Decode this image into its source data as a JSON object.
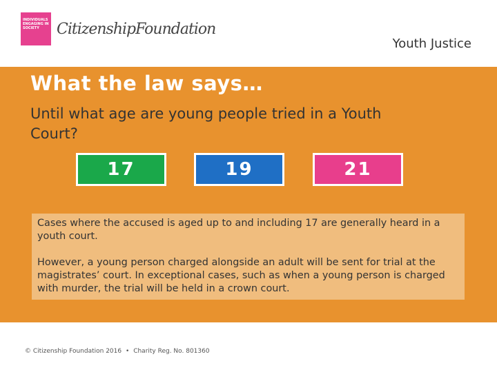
{
  "header": {
    "logo_badge": "INDIVIDUALS ENGAGING IN SOCIETY",
    "logo_name": "CitizenshipFoundation",
    "topic": "Youth Justice"
  },
  "slide": {
    "title": "What the law says…",
    "question": "Until what age are young people tried in a Youth Court?",
    "options": [
      "17",
      "19",
      "21"
    ],
    "answer": [
      "Cases where the accused is aged up to and including 17 are generally heard in a youth court.",
      "However, a young person charged alongside an adult will be sent for trial at the magistrates’ court. In exceptional cases, such as when a young person is charged with murder, the trial will be held in a crown court."
    ]
  },
  "footer": {
    "copyright": "© Citizenship Foundation 2016",
    "charity": "Charity Reg. No. 801360"
  }
}
